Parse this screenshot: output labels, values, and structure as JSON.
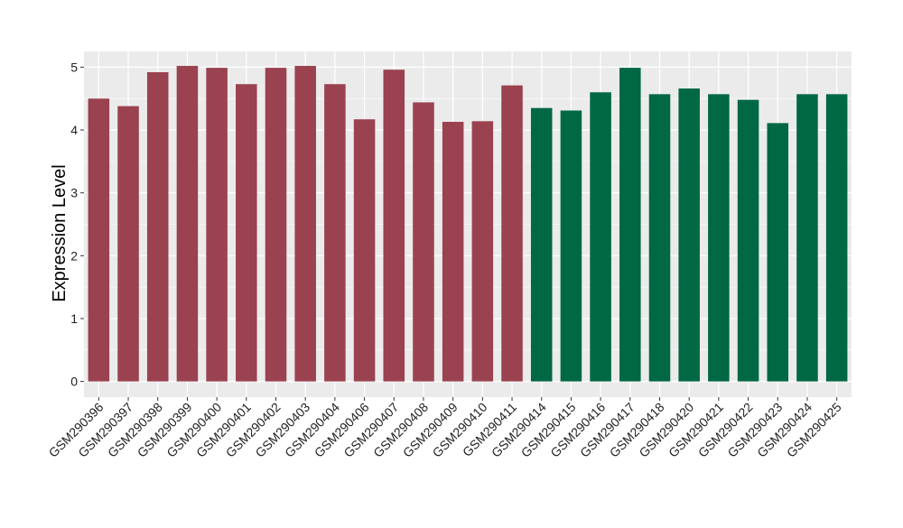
{
  "chart_data": {
    "type": "bar",
    "title": "",
    "xlabel": "",
    "ylabel": "Expression Level",
    "ylim": [
      -0.25,
      5.25
    ],
    "yticks": [
      0,
      1,
      2,
      3,
      4,
      5
    ],
    "grid": true,
    "legend": "none",
    "colors": {
      "group1": "#9b4250",
      "group2": "#006843",
      "panel": "#ebebeb",
      "grid": "#ffffff"
    },
    "categories": [
      "GSM290396",
      "GSM290397",
      "GSM290398",
      "GSM290399",
      "GSM290400",
      "GSM290401",
      "GSM290402",
      "GSM290403",
      "GSM290404",
      "GSM290406",
      "GSM290407",
      "GSM290408",
      "GSM290409",
      "GSM290410",
      "GSM290411",
      "GSM290414",
      "GSM290415",
      "GSM290416",
      "GSM290417",
      "GSM290418",
      "GSM290420",
      "GSM290421",
      "GSM290422",
      "GSM290423",
      "GSM290424",
      "GSM290425"
    ],
    "values": [
      4.5,
      4.38,
      4.92,
      5.02,
      4.99,
      4.73,
      4.99,
      5.02,
      4.73,
      4.17,
      4.96,
      4.44,
      4.13,
      4.14,
      4.71,
      4.35,
      4.31,
      4.6,
      4.99,
      4.57,
      4.66,
      4.57,
      4.48,
      4.11,
      4.57,
      4.57
    ],
    "groups": [
      "group1",
      "group1",
      "group1",
      "group1",
      "group1",
      "group1",
      "group1",
      "group1",
      "group1",
      "group1",
      "group1",
      "group1",
      "group1",
      "group1",
      "group1",
      "group2",
      "group2",
      "group2",
      "group2",
      "group2",
      "group2",
      "group2",
      "group2",
      "group2",
      "group2",
      "group2"
    ]
  }
}
